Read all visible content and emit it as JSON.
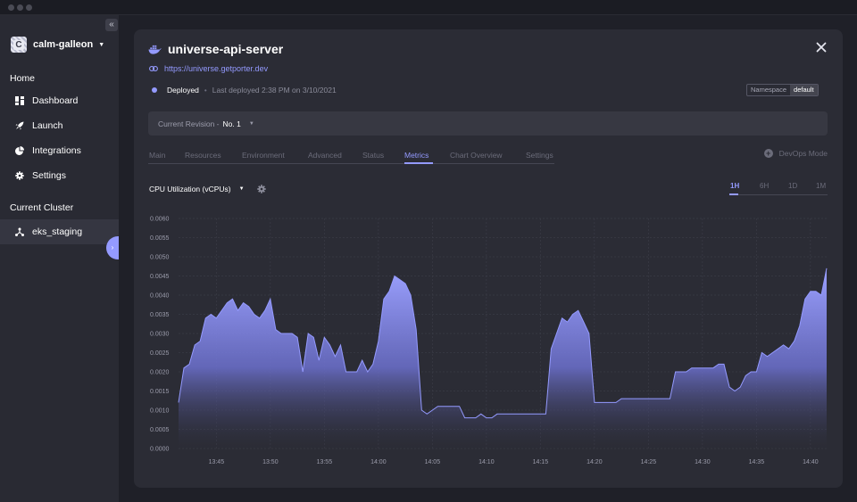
{
  "sidebar": {
    "project_name": "calm-galleon",
    "project_initial": "C",
    "home_heading": "Home",
    "items": [
      {
        "label": "Dashboard",
        "icon": "dashboard-icon"
      },
      {
        "label": "Launch",
        "icon": "rocket-icon"
      },
      {
        "label": "Integrations",
        "icon": "pie-chart-icon"
      },
      {
        "label": "Settings",
        "icon": "gear-icon"
      }
    ],
    "cluster_heading": "Current Cluster",
    "cluster_name": "eks_staging"
  },
  "app": {
    "name": "universe-api-server",
    "url": "https://universe.getporter.dev",
    "status": "Deployed",
    "last_deployed": "Last deployed 2:38 PM on 3/10/2021",
    "namespace_label": "Namespace",
    "namespace_value": "default"
  },
  "revision": {
    "label": "Current Revision -",
    "value": "No. 1"
  },
  "tabs": [
    "Main",
    "Resources",
    "Environment",
    "Advanced",
    "Status",
    "Metrics",
    "Chart Overview",
    "Settings"
  ],
  "active_tab": "Metrics",
  "devops_label": "DevOps Mode",
  "metric": {
    "selected": "CPU Utilization (vCPUs)"
  },
  "time_ranges": [
    "1H",
    "6H",
    "1D",
    "1M"
  ],
  "active_range": "1H",
  "colors": {
    "accent": "#949aff",
    "background": "#1f2028",
    "panel": "#2b2c35",
    "sidebar": "#292a33"
  },
  "chart_data": {
    "type": "area",
    "title": "",
    "xlabel": "",
    "ylabel": "",
    "ylim": [
      0,
      0.006
    ],
    "y_ticks": [
      "0.0000",
      "0.0005",
      "0.0010",
      "0.0015",
      "0.0020",
      "0.0025",
      "0.0030",
      "0.0035",
      "0.0040",
      "0.0045",
      "0.0050",
      "0.0055",
      "0.0060"
    ],
    "x_ticks": [
      "13:45",
      "13:50",
      "13:55",
      "14:00",
      "14:05",
      "14:10",
      "14:15",
      "14:20",
      "14:25",
      "14:30",
      "14:35",
      "14:40"
    ],
    "grid": true,
    "series": [
      {
        "x": [
          0,
          0.5,
          1,
          1.5,
          2,
          2.5,
          3,
          3.5,
          4,
          4.5,
          5,
          5.5,
          6,
          6.5,
          7,
          7.5,
          8,
          8.5,
          9,
          9.5,
          10,
          10.5,
          11,
          11.5,
          12,
          12.5,
          13,
          13.5,
          14,
          14.5,
          15,
          15.5,
          16,
          16.5,
          17,
          17.5,
          18,
          18.5,
          19,
          19.5,
          20,
          20.5,
          21,
          21.5,
          22,
          22.5,
          23,
          23.5,
          24,
          24.5,
          25,
          25.5,
          26,
          26.5,
          27,
          27.5,
          28,
          28.5,
          29,
          29.5,
          30,
          30.5,
          31,
          31.5,
          32,
          32.5,
          33,
          33.5,
          34,
          34.5,
          35,
          35.5,
          36,
          36.5,
          37,
          37.5,
          38,
          38.5,
          39,
          39.5,
          40,
          40.5,
          41,
          41.5,
          42,
          42.5,
          43,
          43.5,
          44,
          44.5,
          45,
          45.5,
          46,
          46.5,
          47,
          47.5,
          48,
          48.5,
          49,
          49.5,
          50,
          50.5,
          51,
          51.5,
          52,
          52.5,
          53,
          53.5,
          54,
          54.5,
          55,
          55.5,
          56,
          56.5,
          57,
          57.5,
          58,
          58.5,
          59,
          59.5,
          60
        ],
        "values": [
          0.0012,
          0.0021,
          0.0022,
          0.0027,
          0.0028,
          0.0034,
          0.0035,
          0.0034,
          0.0036,
          0.0038,
          0.0039,
          0.0036,
          0.0038,
          0.0037,
          0.0035,
          0.0034,
          0.0036,
          0.0039,
          0.0031,
          0.003,
          0.003,
          0.003,
          0.0029,
          0.002,
          0.003,
          0.0029,
          0.0023,
          0.0029,
          0.0027,
          0.0024,
          0.0027,
          0.002,
          0.002,
          0.002,
          0.0023,
          0.002,
          0.0022,
          0.0028,
          0.0039,
          0.0041,
          0.0045,
          0.0044,
          0.0043,
          0.004,
          0.0031,
          0.001,
          0.0009,
          0.001,
          0.0011,
          0.0011,
          0.0011,
          0.0011,
          0.0011,
          0.0008,
          0.0008,
          0.0008,
          0.0009,
          0.0008,
          0.0008,
          0.0009,
          0.0009,
          0.0009,
          0.0009,
          0.0009,
          0.0009,
          0.0009,
          0.0009,
          0.0009,
          0.0009,
          0.0026,
          0.003,
          0.0034,
          0.0033,
          0.0035,
          0.0036,
          0.0033,
          0.003,
          0.0012,
          0.0012,
          0.0012,
          0.0012,
          0.0012,
          0.0013,
          0.0013,
          0.0013,
          0.0013,
          0.0013,
          0.0013,
          0.0013,
          0.0013,
          0.0013,
          0.0013,
          0.002,
          0.002,
          0.002,
          0.0021,
          0.0021,
          0.0021,
          0.0021,
          0.0021,
          0.0022,
          0.0022,
          0.0016,
          0.0015,
          0.0016,
          0.0019,
          0.002,
          0.002,
          0.0025,
          0.0024,
          0.0025,
          0.0026,
          0.0027,
          0.0026,
          0.0028,
          0.0032,
          0.0039,
          0.0041,
          0.0041,
          0.004,
          0.0047
        ]
      }
    ]
  }
}
